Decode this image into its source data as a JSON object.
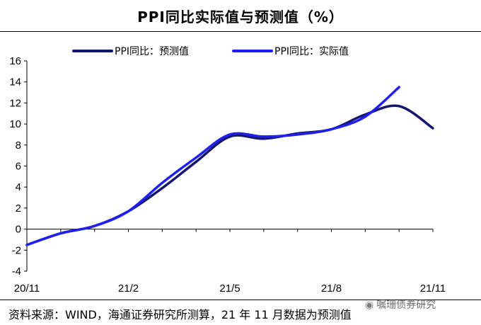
{
  "chart_data": {
    "type": "line",
    "title": "PPI同比实际值与预测值（%）",
    "xlabel": "",
    "ylabel": "",
    "ylim": [
      -4,
      16
    ],
    "yticks": [
      16,
      14,
      12,
      10,
      8,
      6,
      4,
      2,
      0,
      -2,
      -4
    ],
    "x_tick_labels": [
      "20/11",
      "21/2",
      "21/5",
      "21/8",
      "21/11"
    ],
    "x_index_range": [
      0,
      12
    ],
    "x_tick_index": [
      0,
      3,
      6,
      9,
      12
    ],
    "grid": false,
    "legend_position": "top",
    "series": [
      {
        "name": "PPI同比：预测值",
        "color": "#16166e",
        "values": [
          [
            0,
            -1.5
          ],
          [
            1,
            -0.4
          ],
          [
            2,
            0.3
          ],
          [
            3,
            1.7
          ],
          [
            4,
            3.9
          ],
          [
            5,
            6.4
          ],
          [
            6,
            8.8
          ],
          [
            7,
            8.6
          ],
          [
            8,
            9.1
          ],
          [
            9,
            9.5
          ],
          [
            10,
            10.9
          ],
          [
            11,
            11.7
          ],
          [
            12,
            9.6
          ]
        ]
      },
      {
        "name": "PPI同比：实际值",
        "color": "#1f1ff0",
        "values": [
          [
            0,
            -1.5
          ],
          [
            1,
            -0.4
          ],
          [
            2,
            0.3
          ],
          [
            3,
            1.7
          ],
          [
            4,
            4.4
          ],
          [
            5,
            6.8
          ],
          [
            6,
            9.0
          ],
          [
            7,
            8.8
          ],
          [
            8,
            9.0
          ],
          [
            9,
            9.5
          ],
          [
            10,
            10.7
          ],
          [
            11,
            13.5
          ]
        ]
      }
    ]
  },
  "source_note": "资料来源：WIND，海通证券研究所测算，21 年 11 月数据为预测值",
  "watermark": "嘱珊债券研究",
  "watermark_icon": "wechat-icon"
}
